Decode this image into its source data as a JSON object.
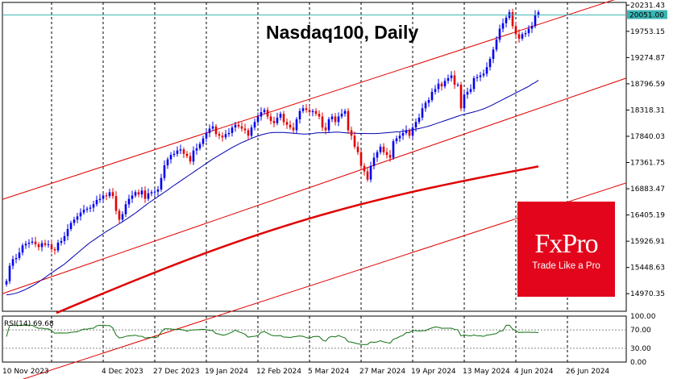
{
  "chart_data": {
    "type": "candlestick",
    "title": "Nasdaq100, Daily",
    "current_price_label": "20051.00",
    "ylim": [
      14650,
      20280
    ],
    "y_ticks": [
      "20231.43",
      "19753.15",
      "19274.87",
      "18796.59",
      "18318.31",
      "17840.03",
      "17361.75",
      "16883.47",
      "16405.19",
      "15926.91",
      "15448.63",
      "14970.35"
    ],
    "x_ticks": [
      "10 Nov 2023",
      "4 Dec 2023",
      "27 Dec 2023",
      "19 Jan 2024",
      "12 Feb 2024",
      "5 Mar 2024",
      "27 Mar 2024",
      "19 Apr 2024",
      "13 May 2024",
      "4 Jun 2024",
      "26 Jun 2024"
    ],
    "x_tick_index": [
      0,
      16,
      32,
      48,
      64,
      80,
      96,
      112,
      128,
      144,
      160
    ],
    "closes": [
      15200,
      15480,
      15600,
      15620,
      15720,
      15850,
      15880,
      15900,
      15920,
      15870,
      15820,
      15890,
      15860,
      15870,
      15780,
      15760,
      15900,
      15930,
      16020,
      16150,
      16260,
      16320,
      16380,
      16450,
      16500,
      16520,
      16540,
      16600,
      16680,
      16700,
      16760,
      16750,
      16820,
      16750,
      16480,
      16320,
      16420,
      16600,
      16700,
      16760,
      16820,
      16780,
      16850,
      16700,
      16800,
      16820,
      16830,
      16870,
      17080,
      17310,
      17420,
      17500,
      17520,
      17580,
      17600,
      17520,
      17480,
      17380,
      17580,
      17620,
      17700,
      17800,
      17900,
      17980,
      18020,
      17880,
      17850,
      17820,
      17880,
      17900,
      18000,
      18050,
      18020,
      17980,
      17950,
      17850,
      18000,
      18100,
      18200,
      18280,
      18320,
      18200,
      18120,
      18080,
      18180,
      18250,
      18100,
      18050,
      18000,
      17950,
      18150,
      18300,
      18350,
      18320,
      18280,
      18300,
      18250,
      18200,
      18000,
      17950,
      18150,
      18200,
      18100,
      18200,
      18250,
      18300,
      17950,
      17850,
      17650,
      17550,
      17300,
      17200,
      17050,
      17300,
      17450,
      17550,
      17650,
      17550,
      17500,
      17450,
      17750,
      17800,
      17850,
      17900,
      17950,
      17850,
      18000,
      18100,
      18180,
      18350,
      18450,
      18500,
      18650,
      18700,
      18800,
      18750,
      18850,
      18900,
      18950,
      18780,
      18780,
      18350,
      18600,
      18650,
      18700,
      18900,
      18920,
      18950,
      18980,
      19100,
      19250,
      19420,
      19600,
      19800,
      19900,
      20000,
      20100,
      19850,
      19700,
      19620,
      19700,
      19720,
      19800,
      19850,
      20050,
      20100
    ],
    "sma50": [
      14950,
      14955,
      14965,
      14980,
      15000,
      15025,
      15050,
      15080,
      15110,
      15145,
      15185,
      15225,
      15265,
      15310,
      15350,
      15390,
      15430,
      15470,
      15510,
      15560,
      15610,
      15660,
      15710,
      15760,
      15810,
      15860,
      15905,
      15945,
      15985,
      16025,
      16065,
      16105,
      16140,
      16175,
      16210,
      16245,
      16280,
      16320,
      16360,
      16400,
      16440,
      16485,
      16530,
      16575,
      16620,
      16660,
      16700,
      16740,
      16780,
      16820,
      16860,
      16905,
      16945,
      16985,
      17025,
      17065,
      17105,
      17145,
      17185,
      17225,
      17265,
      17305,
      17345,
      17385,
      17425,
      17460,
      17495,
      17530,
      17565,
      17600,
      17635,
      17665,
      17695,
      17725,
      17750,
      17775,
      17800,
      17825,
      17845,
      17865,
      17880,
      17895,
      17905,
      17910,
      17910,
      17910,
      17910,
      17905,
      17900,
      17895,
      17890,
      17885,
      17880,
      17880,
      17885,
      17890,
      17900,
      17905,
      17905,
      17905,
      17908,
      17912,
      17915,
      17915,
      17910,
      17905,
      17900,
      17898,
      17895,
      17893,
      17892,
      17891,
      17890,
      17890,
      17890,
      17892,
      17895,
      17900,
      17905,
      17910,
      17915,
      17920,
      17925,
      17932,
      17940,
      17950,
      17960,
      17970,
      17982,
      17995,
      18010,
      18025,
      18045,
      18065,
      18085,
      18105,
      18125,
      18145,
      18165,
      18185,
      18205,
      18225,
      18240,
      18255,
      18270,
      18285,
      18300,
      18320,
      18340,
      18365,
      18390,
      18420,
      18450,
      18480,
      18510,
      18540,
      18570,
      18600,
      18630,
      18660,
      18690,
      18720,
      18750,
      18790,
      18820,
      18860
    ],
    "sma200_start": 14620,
    "sma200_end": 17290,
    "channel_upper": [
      16690,
      20400
    ],
    "channel_mid": [
      14970,
      18900
    ],
    "channel_lower": [
      13290,
      16990
    ],
    "rsi": {
      "label": "RSI(14) 69.68",
      "ticks": [
        "100.00",
        "70.00",
        "30.00",
        "0.00"
      ],
      "ylim": [
        0,
        100
      ]
    }
  }
}
